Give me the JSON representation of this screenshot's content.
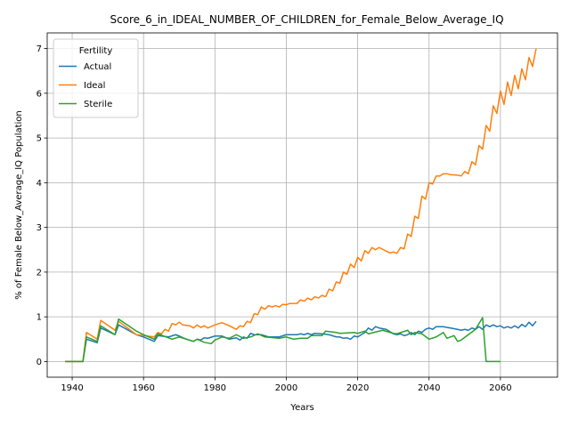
{
  "chart_data": {
    "type": "line",
    "title": "Score_6_in_IDEAL_NUMBER_OF_CHILDREN_for_Female_Below_Average_IQ",
    "xlabel": "Years",
    "ylabel": "% of Female Below_Average_IQ Population",
    "xlim": [
      1933,
      2076
    ],
    "ylim": [
      -0.35,
      7.35
    ],
    "xticks": [
      1940,
      1960,
      1980,
      2000,
      2020,
      2040,
      2060
    ],
    "yticks": [
      0,
      1,
      2,
      3,
      4,
      5,
      6,
      7
    ],
    "grid": true,
    "legend": {
      "title": "Fertility",
      "placement": "top-left"
    },
    "series": [
      {
        "name": "Actual",
        "color": "#1f77b4",
        "points": [
          [
            1938,
            0.0
          ],
          [
            1940,
            0.0
          ],
          [
            1943,
            0.0
          ],
          [
            1944,
            0.5
          ],
          [
            1947,
            0.42
          ],
          [
            1948,
            0.75
          ],
          [
            1952,
            0.6
          ],
          [
            1953,
            0.82
          ],
          [
            1958,
            0.6
          ],
          [
            1960,
            0.55
          ],
          [
            1963,
            0.45
          ],
          [
            1964,
            0.58
          ],
          [
            1967,
            0.55
          ],
          [
            1969,
            0.6
          ],
          [
            1970,
            0.57
          ],
          [
            1972,
            0.5
          ],
          [
            1974,
            0.45
          ],
          [
            1975,
            0.5
          ],
          [
            1976,
            0.48
          ],
          [
            1977,
            0.53
          ],
          [
            1978,
            0.52
          ],
          [
            1980,
            0.57
          ],
          [
            1982,
            0.57
          ],
          [
            1984,
            0.5
          ],
          [
            1986,
            0.53
          ],
          [
            1987,
            0.48
          ],
          [
            1988,
            0.55
          ],
          [
            1989,
            0.52
          ],
          [
            1990,
            0.63
          ],
          [
            1991,
            0.6
          ],
          [
            1993,
            0.6
          ],
          [
            1995,
            0.55
          ],
          [
            1996,
            0.55
          ],
          [
            1998,
            0.55
          ],
          [
            2000,
            0.6
          ],
          [
            2003,
            0.6
          ],
          [
            2004,
            0.62
          ],
          [
            2005,
            0.6
          ],
          [
            2006,
            0.63
          ],
          [
            2007,
            0.6
          ],
          [
            2008,
            0.63
          ],
          [
            2010,
            0.62
          ],
          [
            2012,
            0.6
          ],
          [
            2014,
            0.55
          ],
          [
            2015,
            0.55
          ],
          [
            2016,
            0.52
          ],
          [
            2017,
            0.53
          ],
          [
            2018,
            0.5
          ],
          [
            2019,
            0.57
          ],
          [
            2020,
            0.55
          ],
          [
            2021,
            0.6
          ],
          [
            2022,
            0.65
          ],
          [
            2023,
            0.75
          ],
          [
            2024,
            0.7
          ],
          [
            2025,
            0.78
          ],
          [
            2026,
            0.75
          ],
          [
            2028,
            0.72
          ],
          [
            2030,
            0.62
          ],
          [
            2031,
            0.6
          ],
          [
            2032,
            0.62
          ],
          [
            2033,
            0.58
          ],
          [
            2034,
            0.6
          ],
          [
            2035,
            0.65
          ],
          [
            2036,
            0.6
          ],
          [
            2037,
            0.68
          ],
          [
            2038,
            0.65
          ],
          [
            2039,
            0.72
          ],
          [
            2040,
            0.75
          ],
          [
            2041,
            0.72
          ],
          [
            2042,
            0.78
          ],
          [
            2044,
            0.78
          ],
          [
            2046,
            0.75
          ],
          [
            2048,
            0.72
          ],
          [
            2049,
            0.7
          ],
          [
            2050,
            0.72
          ],
          [
            2051,
            0.7
          ],
          [
            2052,
            0.75
          ],
          [
            2053,
            0.72
          ],
          [
            2054,
            0.78
          ],
          [
            2055,
            0.72
          ],
          [
            2056,
            0.82
          ],
          [
            2057,
            0.78
          ],
          [
            2058,
            0.82
          ],
          [
            2059,
            0.78
          ],
          [
            2060,
            0.8
          ],
          [
            2061,
            0.75
          ],
          [
            2062,
            0.78
          ],
          [
            2063,
            0.75
          ],
          [
            2064,
            0.8
          ],
          [
            2065,
            0.75
          ],
          [
            2066,
            0.83
          ],
          [
            2067,
            0.78
          ],
          [
            2068,
            0.88
          ],
          [
            2069,
            0.8
          ],
          [
            2070,
            0.9
          ]
        ]
      },
      {
        "name": "Ideal",
        "color": "#ff7f0e",
        "points": [
          [
            1938,
            0.0
          ],
          [
            1940,
            0.0
          ],
          [
            1943,
            0.0
          ],
          [
            1944,
            0.65
          ],
          [
            1947,
            0.5
          ],
          [
            1948,
            0.92
          ],
          [
            1952,
            0.7
          ],
          [
            1953,
            0.9
          ],
          [
            1958,
            0.6
          ],
          [
            1960,
            0.58
          ],
          [
            1963,
            0.55
          ],
          [
            1964,
            0.65
          ],
          [
            1965,
            0.62
          ],
          [
            1966,
            0.72
          ],
          [
            1967,
            0.68
          ],
          [
            1968,
            0.85
          ],
          [
            1969,
            0.82
          ],
          [
            1970,
            0.88
          ],
          [
            1971,
            0.82
          ],
          [
            1973,
            0.8
          ],
          [
            1974,
            0.75
          ],
          [
            1975,
            0.82
          ],
          [
            1976,
            0.76
          ],
          [
            1977,
            0.8
          ],
          [
            1978,
            0.75
          ],
          [
            1980,
            0.82
          ],
          [
            1982,
            0.87
          ],
          [
            1984,
            0.8
          ],
          [
            1986,
            0.72
          ],
          [
            1987,
            0.8
          ],
          [
            1988,
            0.78
          ],
          [
            1989,
            0.9
          ],
          [
            1990,
            0.87
          ],
          [
            1991,
            1.07
          ],
          [
            1992,
            1.05
          ],
          [
            1993,
            1.22
          ],
          [
            1994,
            1.17
          ],
          [
            1995,
            1.25
          ],
          [
            1996,
            1.22
          ],
          [
            1997,
            1.25
          ],
          [
            1998,
            1.22
          ],
          [
            1999,
            1.28
          ],
          [
            2000,
            1.27
          ],
          [
            2001,
            1.3
          ],
          [
            2003,
            1.3
          ],
          [
            2004,
            1.38
          ],
          [
            2005,
            1.35
          ],
          [
            2006,
            1.42
          ],
          [
            2007,
            1.38
          ],
          [
            2008,
            1.45
          ],
          [
            2009,
            1.42
          ],
          [
            2010,
            1.48
          ],
          [
            2011,
            1.45
          ],
          [
            2012,
            1.62
          ],
          [
            2013,
            1.58
          ],
          [
            2014,
            1.78
          ],
          [
            2015,
            1.75
          ],
          [
            2016,
            2.0
          ],
          [
            2017,
            1.95
          ],
          [
            2018,
            2.18
          ],
          [
            2019,
            2.1
          ],
          [
            2020,
            2.33
          ],
          [
            2021,
            2.25
          ],
          [
            2022,
            2.48
          ],
          [
            2023,
            2.42
          ],
          [
            2024,
            2.55
          ],
          [
            2025,
            2.5
          ],
          [
            2026,
            2.55
          ],
          [
            2028,
            2.47
          ],
          [
            2029,
            2.43
          ],
          [
            2030,
            2.45
          ],
          [
            2031,
            2.42
          ],
          [
            2032,
            2.55
          ],
          [
            2033,
            2.52
          ],
          [
            2034,
            2.85
          ],
          [
            2035,
            2.8
          ],
          [
            2036,
            3.25
          ],
          [
            2037,
            3.2
          ],
          [
            2038,
            3.7
          ],
          [
            2039,
            3.63
          ],
          [
            2040,
            4.0
          ],
          [
            2041,
            3.97
          ],
          [
            2042,
            4.15
          ],
          [
            2043,
            4.15
          ],
          [
            2044,
            4.2
          ],
          [
            2045,
            4.2
          ],
          [
            2046,
            4.18
          ],
          [
            2048,
            4.17
          ],
          [
            2049,
            4.15
          ],
          [
            2050,
            4.25
          ],
          [
            2051,
            4.2
          ],
          [
            2052,
            4.47
          ],
          [
            2053,
            4.4
          ],
          [
            2054,
            4.83
          ],
          [
            2055,
            4.75
          ],
          [
            2056,
            5.28
          ],
          [
            2057,
            5.15
          ],
          [
            2058,
            5.72
          ],
          [
            2059,
            5.55
          ],
          [
            2060,
            6.05
          ],
          [
            2061,
            5.75
          ],
          [
            2062,
            6.25
          ],
          [
            2063,
            5.95
          ],
          [
            2064,
            6.4
          ],
          [
            2065,
            6.1
          ],
          [
            2066,
            6.55
          ],
          [
            2067,
            6.3
          ],
          [
            2068,
            6.8
          ],
          [
            2069,
            6.6
          ],
          [
            2070,
            7.0
          ]
        ]
      },
      {
        "name": "Sterile",
        "color": "#2ca02c",
        "points": [
          [
            1938,
            0.0
          ],
          [
            1940,
            0.0
          ],
          [
            1943,
            0.0
          ],
          [
            1944,
            0.55
          ],
          [
            1947,
            0.45
          ],
          [
            1948,
            0.8
          ],
          [
            1952,
            0.6
          ],
          [
            1953,
            0.95
          ],
          [
            1958,
            0.68
          ],
          [
            1960,
            0.6
          ],
          [
            1963,
            0.5
          ],
          [
            1964,
            0.62
          ],
          [
            1968,
            0.5
          ],
          [
            1970,
            0.55
          ],
          [
            1974,
            0.45
          ],
          [
            1975,
            0.5
          ],
          [
            1977,
            0.43
          ],
          [
            1979,
            0.4
          ],
          [
            1980,
            0.48
          ],
          [
            1982,
            0.55
          ],
          [
            1984,
            0.52
          ],
          [
            1986,
            0.6
          ],
          [
            1988,
            0.52
          ],
          [
            1990,
            0.55
          ],
          [
            1992,
            0.62
          ],
          [
            1994,
            0.55
          ],
          [
            1998,
            0.52
          ],
          [
            2000,
            0.55
          ],
          [
            2002,
            0.5
          ],
          [
            2004,
            0.52
          ],
          [
            2006,
            0.52
          ],
          [
            2007,
            0.58
          ],
          [
            2010,
            0.58
          ],
          [
            2011,
            0.68
          ],
          [
            2014,
            0.65
          ],
          [
            2015,
            0.63
          ],
          [
            2019,
            0.65
          ],
          [
            2020,
            0.63
          ],
          [
            2022,
            0.68
          ],
          [
            2023,
            0.62
          ],
          [
            2027,
            0.7
          ],
          [
            2030,
            0.63
          ],
          [
            2031,
            0.62
          ],
          [
            2034,
            0.7
          ],
          [
            2035,
            0.6
          ],
          [
            2036,
            0.65
          ],
          [
            2038,
            0.62
          ],
          [
            2040,
            0.5
          ],
          [
            2042,
            0.55
          ],
          [
            2044,
            0.65
          ],
          [
            2045,
            0.52
          ],
          [
            2047,
            0.58
          ],
          [
            2048,
            0.45
          ],
          [
            2049,
            0.48
          ],
          [
            2053,
            0.72
          ],
          [
            2055,
            0.98
          ],
          [
            2056,
            0.0
          ],
          [
            2060,
            0.0
          ]
        ]
      }
    ]
  }
}
